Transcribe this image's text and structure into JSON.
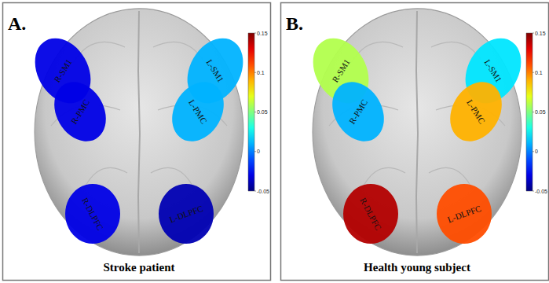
{
  "chart_data": [
    {
      "type": "brain_map",
      "title": "A.",
      "subtitle": "Stroke patient",
      "colorbar": {
        "range": [
          -0.05,
          0.15
        ],
        "ticks": [
          -0.05,
          0,
          0.05,
          0.1,
          0.15
        ]
      },
      "regions": [
        {
          "label": "R-SM1",
          "value": -0.03
        },
        {
          "label": "R-PMC",
          "value": -0.03
        },
        {
          "label": "L-SM1",
          "value": 0.01
        },
        {
          "label": "L-PMC",
          "value": 0.01
        },
        {
          "label": "R-DLPFC",
          "value": -0.03
        },
        {
          "label": "L-DLPFC",
          "value": -0.04
        }
      ]
    },
    {
      "type": "brain_map",
      "title": "B.",
      "subtitle": "Health young subject",
      "colorbar": {
        "range": [
          -0.05,
          0.15
        ],
        "ticks": [
          -0.05,
          0,
          0.05,
          0.1,
          0.15
        ]
      },
      "regions": [
        {
          "label": "R-SM1",
          "value": 0.06
        },
        {
          "label": "R-PMC",
          "value": 0.01
        },
        {
          "label": "L-SM1",
          "value": 0.02
        },
        {
          "label": "L-PMC",
          "value": 0.09
        },
        {
          "label": "R-DLPFC",
          "value": 0.14
        },
        {
          "label": "L-DLPFC",
          "value": 0.11
        }
      ]
    }
  ]
}
